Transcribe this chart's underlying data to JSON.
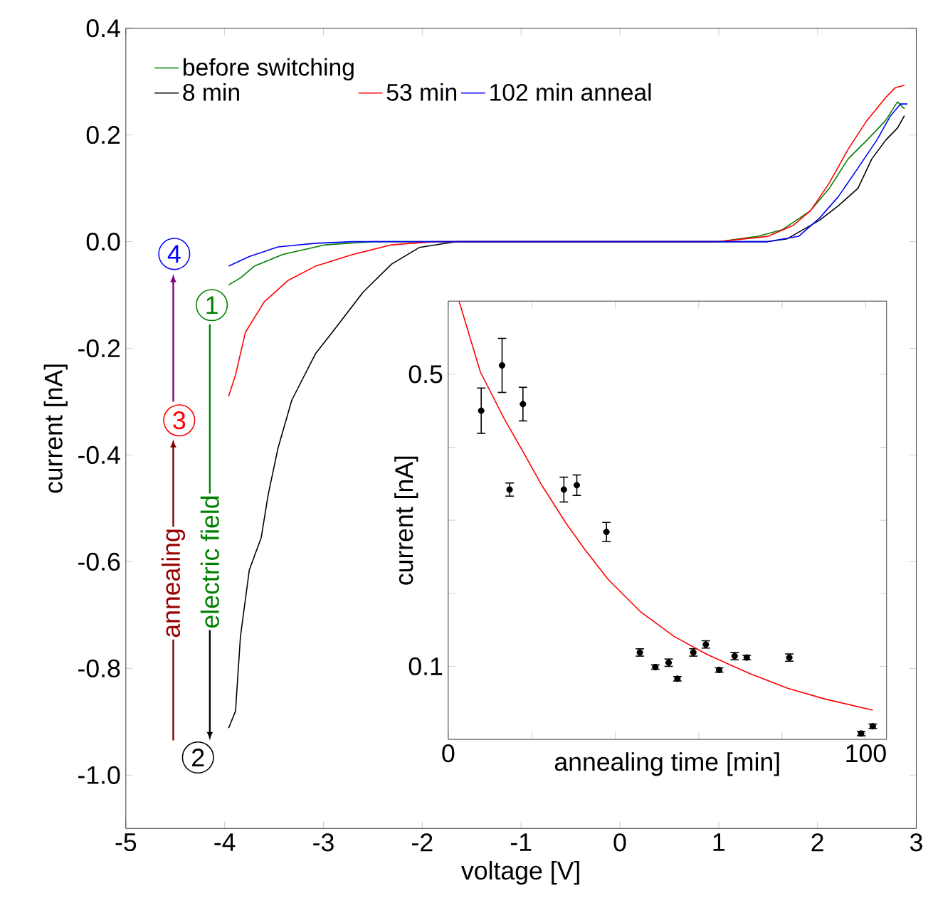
{
  "chart_data": [
    {
      "type": "line",
      "xlabel": "voltage [V]",
      "ylabel": "current [nA]",
      "xlim": [
        -5,
        3
      ],
      "ylim": [
        -1.1,
        0.4
      ],
      "xticks": [
        -5,
        -4,
        -3,
        -2,
        -1,
        0,
        1,
        2,
        3
      ],
      "yticks": [
        {
          "value": -1,
          "label": "-1.0"
        },
        {
          "value": -0.8,
          "label": "-0.8"
        },
        {
          "value": -0.6,
          "label": "-0.6"
        },
        {
          "value": -0.4,
          "label": "-0.4"
        },
        {
          "value": -0.2,
          "label": "-0.2"
        },
        {
          "value": 0,
          "label": "0.0"
        },
        {
          "value": 0.2,
          "label": "0.2"
        },
        {
          "value": 0.4,
          "label": "0.4"
        }
      ],
      "legend": "top left",
      "annotations": [
        "1",
        "2",
        "3",
        "4",
        "annealing",
        "electric field"
      ],
      "series": [
        {
          "name": "before switching",
          "color": "#008000",
          "x": [
            -3.96,
            -3.84,
            -3.7,
            -3.41,
            -2.98,
            -2.5,
            -1.5,
            0,
            1,
            1.4,
            1.64,
            1.93,
            2.12,
            2.31,
            2.5,
            2.69,
            2.81,
            2.88
          ],
          "values": [
            -0.081,
            -0.068,
            -0.046,
            -0.024,
            -0.006,
            0,
            0,
            0,
            0,
            0.01,
            0.022,
            0.058,
            0.1,
            0.155,
            0.19,
            0.227,
            0.262,
            0.249
          ]
        },
        {
          "name": "8 min",
          "color": "#000000",
          "x": [
            -3.96,
            -3.89,
            -3.84,
            -3.75,
            -3.63,
            -3.56,
            -3.46,
            -3.32,
            -3.08,
            -2.89,
            -2.6,
            -2.31,
            -2.03,
            -1.65,
            -1,
            0,
            1,
            1.5,
            1.69,
            2.02,
            2.21,
            2.41,
            2.55,
            2.69,
            2.81,
            2.88
          ],
          "values": [
            -0.912,
            -0.88,
            -0.74,
            -0.615,
            -0.555,
            -0.475,
            -0.387,
            -0.297,
            -0.21,
            -0.165,
            -0.095,
            -0.042,
            -0.011,
            0,
            0,
            0,
            0,
            0,
            0.005,
            0.04,
            0.067,
            0.1,
            0.155,
            0.19,
            0.213,
            0.236
          ]
        },
        {
          "name": "53 min",
          "color": "#ff0000",
          "x": [
            -3.96,
            -3.89,
            -3.79,
            -3.6,
            -3.36,
            -3.08,
            -2.7,
            -2.31,
            -1.89,
            -1,
            0,
            1,
            1.5,
            1.75,
            1.93,
            2.12,
            2.31,
            2.5,
            2.69,
            2.79,
            2.88
          ],
          "values": [
            -0.29,
            -0.25,
            -0.17,
            -0.113,
            -0.073,
            -0.046,
            -0.024,
            -0.006,
            0,
            0,
            0,
            0,
            0.01,
            0.03,
            0.058,
            0.11,
            0.173,
            0.227,
            0.27,
            0.289,
            0.293
          ]
        },
        {
          "name": "102 min anneal",
          "color": "#0000ff",
          "x": [
            -3.96,
            -3.75,
            -3.46,
            -3.08,
            -2.7,
            -1.5,
            0,
            1,
            1.5,
            1.81,
            2.02,
            2.21,
            2.41,
            2.6,
            2.74,
            2.84,
            2.91
          ],
          "values": [
            -0.046,
            -0.028,
            -0.01,
            -0.003,
            0,
            0,
            0,
            0,
            0,
            0.01,
            0.044,
            0.084,
            0.138,
            0.19,
            0.236,
            0.258,
            0.258
          ]
        }
      ]
    },
    {
      "type": "scatter",
      "xlabel": "annealing time [min]",
      "ylabel": "current [nA]",
      "xlim": [
        0,
        105
      ],
      "ylim": [
        0,
        0.6
      ],
      "xticks": [
        0,
        {
          "value": 20,
          "label": null
        },
        {
          "value": 40,
          "label": null
        },
        {
          "value": 60,
          "label": null
        },
        {
          "value": 80,
          "label": null
        },
        100
      ],
      "yticks": [
        0.1,
        {
          "value": 0.2,
          "label": null
        },
        {
          "value": 0.3,
          "label": null
        },
        {
          "value": 0.4,
          "label": null
        },
        0.5
      ],
      "series": [
        {
          "marker": "circle",
          "color": "#000000",
          "x": [
            7.9,
            12.9,
            14.7,
            17.9,
            27.7,
            30.8,
            37.9,
            45.9,
            49.6,
            52.8,
            54.9,
            58.7,
            61.7,
            64.9,
            68.6,
            71.5,
            81.7,
            98.9,
            101.7
          ],
          "values": [
            0.45,
            0.512,
            0.342,
            0.459,
            0.342,
            0.348,
            0.284,
            0.119,
            0.099,
            0.105,
            0.083,
            0.119,
            0.13,
            0.095,
            0.114,
            0.112,
            0.112,
            0.008,
            0.018
          ],
          "errors": [
            0.031,
            0.037,
            0.009,
            0.023,
            0.017,
            0.014,
            0.013,
            0.005,
            0.003,
            0.005,
            0.003,
            0.005,
            0.005,
            0.003,
            0.005,
            0.003,
            0.005,
            0.003,
            0.003
          ]
        },
        {
          "type": "line",
          "marker": "none",
          "color": "#ff0000",
          "x": [
            2.6,
            7.7,
            13.4,
            17.9,
            22.4,
            28.1,
            32.6,
            38.3,
            46.2,
            54.1,
            62.1,
            72.3,
            81.3,
            90.4,
            101.7
          ],
          "values": [
            0.6,
            0.503,
            0.439,
            0.394,
            0.348,
            0.297,
            0.261,
            0.219,
            0.174,
            0.141,
            0.116,
            0.09,
            0.07,
            0.055,
            0.04
          ]
        }
      ]
    }
  ]
}
